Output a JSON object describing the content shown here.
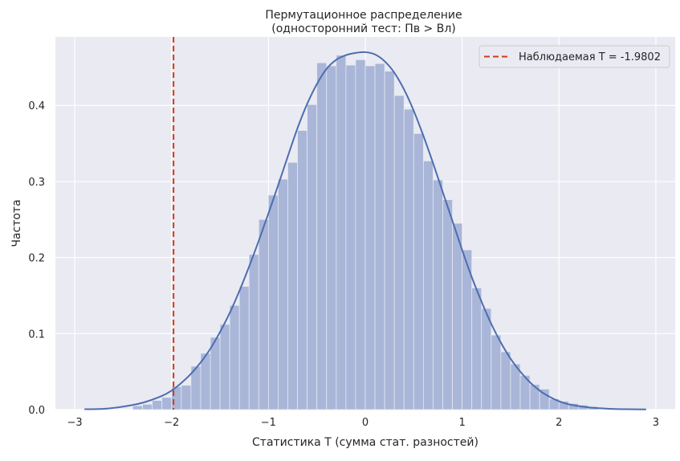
{
  "chart_data": {
    "type": "bar",
    "title_lines": [
      "Пермутационное распределение",
      "(односторонний тест: Пв > Вл)"
    ],
    "xlabel": "Статистика Т (сумма стат. разностей)",
    "ylabel": "Частота",
    "xlim": [
      -3.2,
      3.2
    ],
    "ylim": [
      0,
      0.49
    ],
    "x_ticks": [
      -3,
      -2,
      -1,
      0,
      1,
      2,
      3
    ],
    "x_tick_labels": [
      "−3",
      "−2",
      "−1",
      "0",
      "1",
      "2",
      "3"
    ],
    "y_ticks": [
      0.0,
      0.1,
      0.2,
      0.3,
      0.4
    ],
    "y_tick_labels": [
      "0.0",
      "0.1",
      "0.2",
      "0.3",
      "0.4"
    ],
    "grid": true,
    "legend_position": "top-right",
    "histogram": {
      "bin_width": 0.1,
      "bins": [
        {
          "x0": -2.4,
          "value": 0.005
        },
        {
          "x0": -2.3,
          "value": 0.007
        },
        {
          "x0": -2.2,
          "value": 0.012
        },
        {
          "x0": -2.1,
          "value": 0.016
        },
        {
          "x0": -2.0,
          "value": 0.03
        },
        {
          "x0": -1.9,
          "value": 0.032
        },
        {
          "x0": -1.8,
          "value": 0.057
        },
        {
          "x0": -1.7,
          "value": 0.074
        },
        {
          "x0": -1.6,
          "value": 0.095
        },
        {
          "x0": -1.5,
          "value": 0.112
        },
        {
          "x0": -1.4,
          "value": 0.137
        },
        {
          "x0": -1.3,
          "value": 0.162
        },
        {
          "x0": -1.2,
          "value": 0.204
        },
        {
          "x0": -1.1,
          "value": 0.25
        },
        {
          "x0": -1.0,
          "value": 0.282
        },
        {
          "x0": -0.9,
          "value": 0.303
        },
        {
          "x0": -0.8,
          "value": 0.325
        },
        {
          "x0": -0.7,
          "value": 0.367
        },
        {
          "x0": -0.6,
          "value": 0.401
        },
        {
          "x0": -0.5,
          "value": 0.456
        },
        {
          "x0": -0.4,
          "value": 0.452
        },
        {
          "x0": -0.3,
          "value": 0.466
        },
        {
          "x0": -0.2,
          "value": 0.453
        },
        {
          "x0": -0.1,
          "value": 0.46
        },
        {
          "x0": 0.0,
          "value": 0.452
        },
        {
          "x0": 0.1,
          "value": 0.455
        },
        {
          "x0": 0.2,
          "value": 0.445
        },
        {
          "x0": 0.3,
          "value": 0.413
        },
        {
          "x0": 0.4,
          "value": 0.395
        },
        {
          "x0": 0.5,
          "value": 0.363
        },
        {
          "x0": 0.6,
          "value": 0.327
        },
        {
          "x0": 0.7,
          "value": 0.302
        },
        {
          "x0": 0.8,
          "value": 0.276
        },
        {
          "x0": 0.9,
          "value": 0.245
        },
        {
          "x0": 1.0,
          "value": 0.21
        },
        {
          "x0": 1.1,
          "value": 0.16
        },
        {
          "x0": 1.2,
          "value": 0.133
        },
        {
          "x0": 1.3,
          "value": 0.098
        },
        {
          "x0": 1.4,
          "value": 0.076
        },
        {
          "x0": 1.5,
          "value": 0.06
        },
        {
          "x0": 1.6,
          "value": 0.045
        },
        {
          "x0": 1.7,
          "value": 0.033
        },
        {
          "x0": 1.8,
          "value": 0.027
        },
        {
          "x0": 1.9,
          "value": 0.014
        },
        {
          "x0": 2.0,
          "value": 0.011
        },
        {
          "x0": 2.1,
          "value": 0.008
        },
        {
          "x0": 2.2,
          "value": 0.006
        },
        {
          "x0": 2.3,
          "value": 0.004
        }
      ]
    },
    "kde": {
      "x": [
        -2.9,
        -2.7,
        -2.5,
        -2.3,
        -2.1,
        -2.0,
        -1.9,
        -1.8,
        -1.7,
        -1.6,
        -1.5,
        -1.4,
        -1.3,
        -1.2,
        -1.1,
        -1.0,
        -0.9,
        -0.8,
        -0.7,
        -0.6,
        -0.5,
        -0.4,
        -0.3,
        -0.2,
        -0.1,
        0.0,
        0.1,
        0.2,
        0.3,
        0.4,
        0.5,
        0.6,
        0.7,
        0.8,
        0.9,
        1.0,
        1.1,
        1.2,
        1.3,
        1.4,
        1.5,
        1.6,
        1.7,
        1.8,
        1.9,
        2.0,
        2.1,
        2.3,
        2.5,
        2.7,
        2.9
      ],
      "y": [
        0.0005,
        0.001,
        0.004,
        0.009,
        0.018,
        0.025,
        0.035,
        0.047,
        0.062,
        0.08,
        0.102,
        0.127,
        0.156,
        0.188,
        0.222,
        0.258,
        0.295,
        0.333,
        0.37,
        0.402,
        0.428,
        0.448,
        0.46,
        0.466,
        0.469,
        0.47,
        0.467,
        0.458,
        0.443,
        0.421,
        0.393,
        0.36,
        0.324,
        0.286,
        0.248,
        0.21,
        0.174,
        0.142,
        0.113,
        0.088,
        0.067,
        0.05,
        0.036,
        0.025,
        0.017,
        0.011,
        0.007,
        0.003,
        0.0012,
        0.0005,
        0.0002
      ]
    },
    "observed": {
      "label": "Наблюдаемая Т = -1.9802",
      "value": -1.9802
    },
    "colors": {
      "background": "#eaeaf2",
      "grid": "#ffffff",
      "bar_fill": "#a9b6d8",
      "bar_edge": "#e4e8f2",
      "kde_line": "#4c6eaf",
      "observed_line": "#d13a1c"
    }
  }
}
